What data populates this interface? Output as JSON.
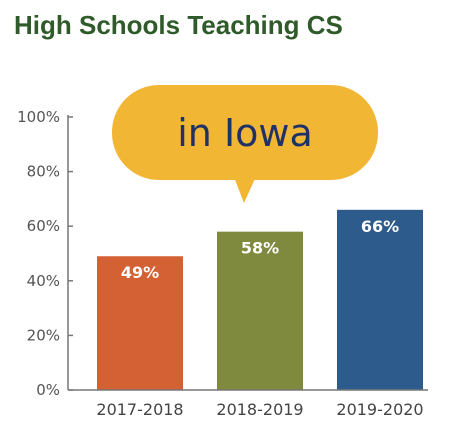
{
  "chart_data": {
    "type": "bar",
    "title": "High Schools Teaching CS",
    "callout": "in Iowa",
    "categories": [
      "2017-2018",
      "2018-2019",
      "2019-2020"
    ],
    "values": [
      49,
      58,
      66
    ],
    "data_labels": [
      "49%",
      "58%",
      "66%"
    ],
    "y_ticks": [
      "0%",
      "20%",
      "40%",
      "60%",
      "80%",
      "100%"
    ],
    "ylim": [
      0,
      100
    ],
    "grid": false,
    "colors": {
      "title": "#2f5a2a",
      "bars": [
        "#d36134",
        "#7f8a3f",
        "#2d5b8c"
      ],
      "callout_fill": "#f2b635",
      "callout_text": "#1f3268",
      "axis": "#777777"
    }
  }
}
